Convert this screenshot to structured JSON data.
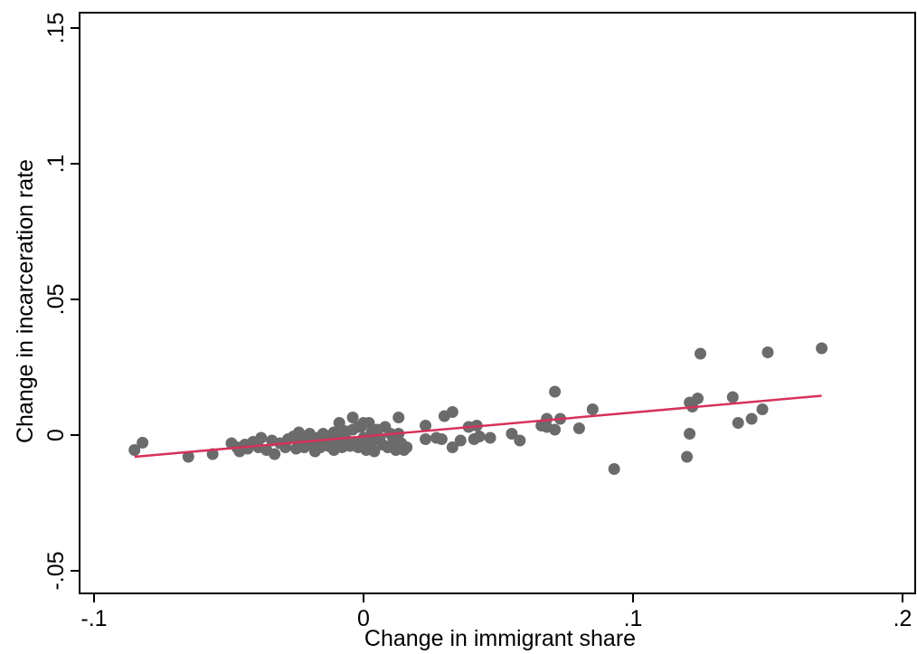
{
  "chart_data": {
    "type": "scatter",
    "xlabel": "Change in immigrant share",
    "ylabel": "Change in incarceration rate",
    "xlim": [
      -0.1,
      0.2
    ],
    "ylim": [
      -0.05,
      0.15
    ],
    "xticks": [
      {
        "value": -0.1,
        "label": "-.1"
      },
      {
        "value": 0,
        "label": "0"
      },
      {
        "value": 0.1,
        "label": ".1"
      },
      {
        "value": 0.2,
        "label": ".2"
      }
    ],
    "yticks": [
      {
        "value": -0.05,
        "label": "-.05"
      },
      {
        "value": 0,
        "label": "0"
      },
      {
        "value": 0.05,
        "label": ".05"
      },
      {
        "value": 0.1,
        "label": ".1"
      },
      {
        "value": 0.15,
        "label": ".15"
      }
    ],
    "grid": false,
    "legend": "none",
    "colors": {
      "points": "#6b6b6b",
      "fit_line": "#d6325a"
    },
    "fit_line": {
      "x": [
        -0.085,
        0.17
      ],
      "y": [
        -0.008,
        0.0145
      ]
    },
    "points": [
      {
        "x": -0.085,
        "y": -0.0055
      },
      {
        "x": -0.082,
        "y": -0.0028
      },
      {
        "x": -0.065,
        "y": -0.008
      },
      {
        "x": -0.056,
        "y": -0.007
      },
      {
        "x": -0.049,
        "y": -0.003
      },
      {
        "x": -0.047,
        "y": -0.0045
      },
      {
        "x": -0.046,
        "y": -0.006
      },
      {
        "x": -0.044,
        "y": -0.0035
      },
      {
        "x": -0.043,
        "y": -0.005
      },
      {
        "x": -0.041,
        "y": -0.0025
      },
      {
        "x": -0.039,
        "y": -0.0045
      },
      {
        "x": -0.036,
        "y": -0.0055
      },
      {
        "x": -0.038,
        "y": -0.001
      },
      {
        "x": -0.034,
        "y": -0.002
      },
      {
        "x": -0.033,
        "y": -0.007
      },
      {
        "x": -0.031,
        "y": -0.003
      },
      {
        "x": -0.029,
        "y": -0.0045
      },
      {
        "x": -0.028,
        "y": -0.0015
      },
      {
        "x": -0.026,
        "y": -0.0005
      },
      {
        "x": -0.025,
        "y": -0.005
      },
      {
        "x": -0.024,
        "y": 0.001
      },
      {
        "x": -0.023,
        "y": -0.003
      },
      {
        "x": -0.022,
        "y": -0.0045
      },
      {
        "x": -0.021,
        "y": -0.0015
      },
      {
        "x": -0.02,
        "y": 0.0005
      },
      {
        "x": -0.019,
        "y": -0.0035
      },
      {
        "x": -0.018,
        "y": -0.006
      },
      {
        "x": -0.017,
        "y": -0.001
      },
      {
        "x": -0.016,
        "y": -0.0045
      },
      {
        "x": -0.015,
        "y": 0.0005
      },
      {
        "x": -0.014,
        "y": -0.0025
      },
      {
        "x": -0.013,
        "y": -0.004
      },
      {
        "x": -0.012,
        "y": -0.0015
      },
      {
        "x": -0.011,
        "y": 0.001
      },
      {
        "x": -0.01,
        "y": -0.003
      },
      {
        "x": -0.009,
        "y": -0.0005
      },
      {
        "x": -0.008,
        "y": -0.0045
      },
      {
        "x": -0.007,
        "y": 0.0015
      },
      {
        "x": -0.006,
        "y": -0.002
      },
      {
        "x": -0.005,
        "y": -0.004
      },
      {
        "x": -0.004,
        "y": 0.002
      },
      {
        "x": -0.003,
        "y": -0.0025
      },
      {
        "x": -0.002,
        "y": -0.0045
      },
      {
        "x": -0.001,
        "y": 0.003
      },
      {
        "x": 0.0,
        "y": -0.001
      },
      {
        "x": 0.001,
        "y": -0.003
      },
      {
        "x": 0.002,
        "y": 0.0045
      },
      {
        "x": 0.003,
        "y": -0.0025
      },
      {
        "x": 0.004,
        "y": -0.006
      },
      {
        "x": 0.005,
        "y": 0.002
      },
      {
        "x": 0.006,
        "y": -0.001
      },
      {
        "x": -0.004,
        "y": 0.0065
      },
      {
        "x": -0.002,
        "y": 0.003
      },
      {
        "x": 0.001,
        "y": -0.0055
      },
      {
        "x": 0.0,
        "y": 0.0045
      },
      {
        "x": 0.003,
        "y": 0.001
      },
      {
        "x": -0.015,
        "y": -0.0035
      },
      {
        "x": -0.009,
        "y": 0.0045
      },
      {
        "x": -0.007,
        "y": -0.0005
      },
      {
        "x": -0.011,
        "y": -0.0055
      },
      {
        "x": 0.007,
        "y": -0.0035
      },
      {
        "x": 0.008,
        "y": 0.003
      },
      {
        "x": 0.009,
        "y": -0.0045
      },
      {
        "x": 0.01,
        "y": 0.0005
      },
      {
        "x": 0.011,
        "y": -0.0015
      },
      {
        "x": 0.012,
        "y": -0.0055
      },
      {
        "x": 0.013,
        "y": 0.0005
      },
      {
        "x": 0.014,
        "y": -0.003
      },
      {
        "x": 0.015,
        "y": -0.0055
      },
      {
        "x": 0.016,
        "y": -0.0045
      },
      {
        "x": 0.013,
        "y": 0.0065
      },
      {
        "x": 0.023,
        "y": 0.0035
      },
      {
        "x": 0.023,
        "y": -0.0015
      },
      {
        "x": 0.027,
        "y": -0.001
      },
      {
        "x": 0.029,
        "y": -0.0015
      },
      {
        "x": 0.03,
        "y": 0.007
      },
      {
        "x": 0.033,
        "y": 0.0085
      },
      {
        "x": 0.033,
        "y": -0.0045
      },
      {
        "x": 0.036,
        "y": -0.002
      },
      {
        "x": 0.039,
        "y": 0.003
      },
      {
        "x": 0.041,
        "y": -0.0015
      },
      {
        "x": 0.042,
        "y": 0.0035
      },
      {
        "x": 0.043,
        "y": -0.0005
      },
      {
        "x": 0.047,
        "y": -0.001
      },
      {
        "x": 0.055,
        "y": 0.0005
      },
      {
        "x": 0.058,
        "y": -0.002
      },
      {
        "x": 0.066,
        "y": 0.0035
      },
      {
        "x": 0.068,
        "y": 0.003
      },
      {
        "x": 0.068,
        "y": 0.006
      },
      {
        "x": 0.071,
        "y": 0.002
      },
      {
        "x": 0.071,
        "y": 0.016
      },
      {
        "x": 0.073,
        "y": 0.006
      },
      {
        "x": 0.08,
        "y": 0.0025
      },
      {
        "x": 0.085,
        "y": 0.0095
      },
      {
        "x": 0.093,
        "y": -0.0125
      },
      {
        "x": 0.12,
        "y": -0.008
      },
      {
        "x": 0.121,
        "y": 0.0005
      },
      {
        "x": 0.121,
        "y": 0.012
      },
      {
        "x": 0.122,
        "y": 0.0105
      },
      {
        "x": 0.124,
        "y": 0.0135
      },
      {
        "x": 0.125,
        "y": 0.03
      },
      {
        "x": 0.137,
        "y": 0.014
      },
      {
        "x": 0.139,
        "y": 0.0045
      },
      {
        "x": 0.144,
        "y": 0.006
      },
      {
        "x": 0.148,
        "y": 0.0095
      },
      {
        "x": 0.15,
        "y": 0.0305
      },
      {
        "x": 0.17,
        "y": 0.032
      }
    ]
  }
}
